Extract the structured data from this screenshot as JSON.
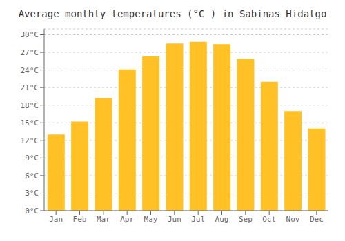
{
  "chart_data": {
    "type": "bar",
    "title": "Average monthly temperatures (°C ) in Sabinas Hidalgo",
    "categories": [
      "Jan",
      "Feb",
      "Mar",
      "Apr",
      "May",
      "Jun",
      "Jul",
      "Aug",
      "Sep",
      "Oct",
      "Nov",
      "Dec"
    ],
    "values": [
      13.0,
      15.2,
      19.2,
      24.1,
      26.3,
      28.5,
      28.8,
      28.4,
      25.9,
      22.0,
      17.0,
      14.0
    ],
    "color": "#FFC125",
    "ylim": [
      0,
      31
    ],
    "yticks": [
      {
        "value": 0,
        "label": "0°C"
      },
      {
        "value": 3,
        "label": "3°C"
      },
      {
        "value": 6,
        "label": "6°C"
      },
      {
        "value": 9,
        "label": "9°C"
      },
      {
        "value": 12,
        "label": "12°C"
      },
      {
        "value": 15,
        "label": "15°C"
      },
      {
        "value": 18,
        "label": "18°C"
      },
      {
        "value": 21,
        "label": "21°C"
      },
      {
        "value": 24,
        "label": "24°C"
      },
      {
        "value": 27,
        "label": "27°C"
      },
      {
        "value": 30,
        "label": "30°C"
      }
    ],
    "grid": true
  }
}
